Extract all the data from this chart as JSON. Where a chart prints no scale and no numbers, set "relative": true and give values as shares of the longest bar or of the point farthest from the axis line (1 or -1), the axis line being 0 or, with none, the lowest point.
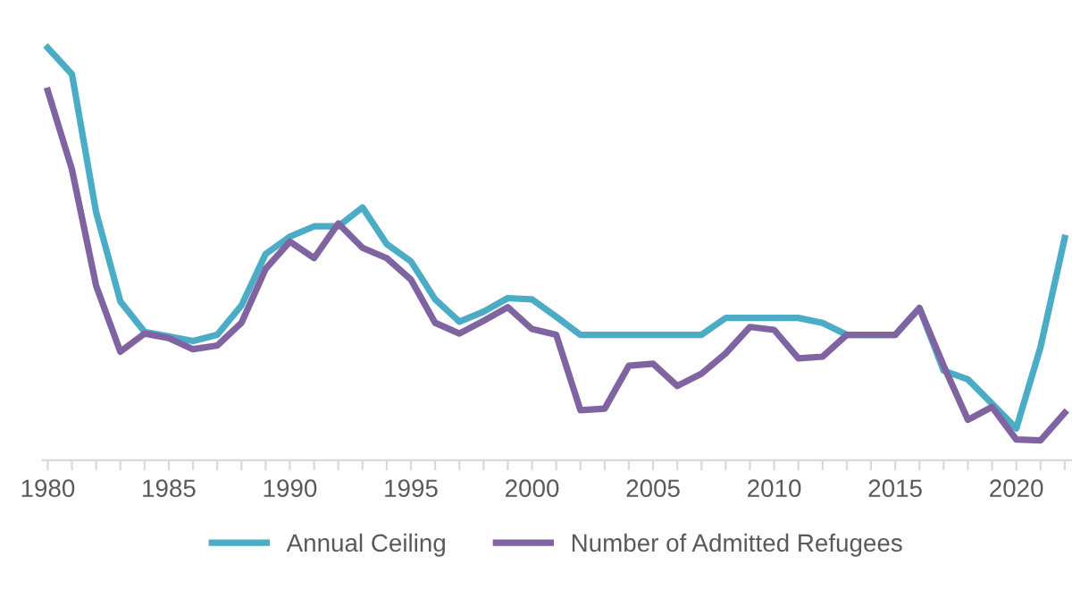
{
  "chart_data": {
    "type": "line",
    "relative": true,
    "x": [
      1980,
      1981,
      1982,
      1983,
      1984,
      1985,
      1986,
      1987,
      1988,
      1989,
      1990,
      1991,
      1992,
      1993,
      1994,
      1995,
      1996,
      1997,
      1998,
      1999,
      2000,
      2001,
      2002,
      2003,
      2004,
      2005,
      2006,
      2007,
      2008,
      2009,
      2010,
      2011,
      2012,
      2013,
      2014,
      2015,
      2016,
      2017,
      2018,
      2019,
      2020,
      2021,
      2022
    ],
    "series": [
      {
        "name": "Annual Ceiling",
        "color": "#4bacc6",
        "values": [
          1.0,
          0.936,
          0.601,
          0.385,
          0.311,
          0.3,
          0.289,
          0.304,
          0.375,
          0.5,
          0.542,
          0.567,
          0.567,
          0.613,
          0.524,
          0.482,
          0.39,
          0.336,
          0.36,
          0.393,
          0.39,
          0.348,
          0.304,
          0.304,
          0.304,
          0.304,
          0.304,
          0.304,
          0.345,
          0.345,
          0.345,
          0.345,
          0.333,
          0.304,
          0.304,
          0.304,
          0.369,
          0.217,
          0.196,
          0.137,
          0.077,
          0.274,
          0.539
        ]
      },
      {
        "name": "Number of Admitted Refugees",
        "color": "#8064a2",
        "values": [
          0.896,
          0.705,
          0.423,
          0.263,
          0.307,
          0.296,
          0.269,
          0.278,
          0.333,
          0.464,
          0.53,
          0.49,
          0.574,
          0.515,
          0.49,
          0.438,
          0.333,
          0.307,
          0.338,
          0.371,
          0.318,
          0.304,
          0.121,
          0.125,
          0.229,
          0.234,
          0.18,
          0.21,
          0.259,
          0.323,
          0.316,
          0.247,
          0.251,
          0.304,
          0.304,
          0.304,
          0.369,
          0.229,
          0.098,
          0.129,
          0.05,
          0.048,
          0.115
        ]
      }
    ],
    "xlim": [
      1979.8,
      2022.3
    ],
    "xticks": [
      {
        "value": 1980,
        "label": "1980"
      },
      {
        "value": 1981,
        "label": null
      },
      {
        "value": 1982,
        "label": null
      },
      {
        "value": 1983,
        "label": null
      },
      {
        "value": 1984,
        "label": null
      },
      {
        "value": 1985,
        "label": "1985"
      },
      {
        "value": 1986,
        "label": null
      },
      {
        "value": 1987,
        "label": null
      },
      {
        "value": 1988,
        "label": null
      },
      {
        "value": 1989,
        "label": null
      },
      {
        "value": 1990,
        "label": "1990"
      },
      {
        "value": 1991,
        "label": null
      },
      {
        "value": 1992,
        "label": null
      },
      {
        "value": 1993,
        "label": null
      },
      {
        "value": 1994,
        "label": null
      },
      {
        "value": 1995,
        "label": "1995"
      },
      {
        "value": 1996,
        "label": null
      },
      {
        "value": 1997,
        "label": null
      },
      {
        "value": 1998,
        "label": null
      },
      {
        "value": 1999,
        "label": null
      },
      {
        "value": 2000,
        "label": "2000"
      },
      {
        "value": 2001,
        "label": null
      },
      {
        "value": 2002,
        "label": null
      },
      {
        "value": 2003,
        "label": null
      },
      {
        "value": 2004,
        "label": null
      },
      {
        "value": 2005,
        "label": "2005"
      },
      {
        "value": 2006,
        "label": null
      },
      {
        "value": 2007,
        "label": null
      },
      {
        "value": 2008,
        "label": null
      },
      {
        "value": 2009,
        "label": null
      },
      {
        "value": 2010,
        "label": "2010"
      },
      {
        "value": 2011,
        "label": null
      },
      {
        "value": 2012,
        "label": null
      },
      {
        "value": 2013,
        "label": null
      },
      {
        "value": 2014,
        "label": null
      },
      {
        "value": 2015,
        "label": "2015"
      },
      {
        "value": 2016,
        "label": null
      },
      {
        "value": 2017,
        "label": null
      },
      {
        "value": 2018,
        "label": null
      },
      {
        "value": 2019,
        "label": null
      },
      {
        "value": 2020,
        "label": "2020"
      },
      {
        "value": 2021,
        "label": null
      },
      {
        "value": 2022,
        "label": null
      }
    ],
    "tick_labels": "x",
    "grid": false,
    "legend": "bottom",
    "marker": "none",
    "line_style": "solid"
  }
}
